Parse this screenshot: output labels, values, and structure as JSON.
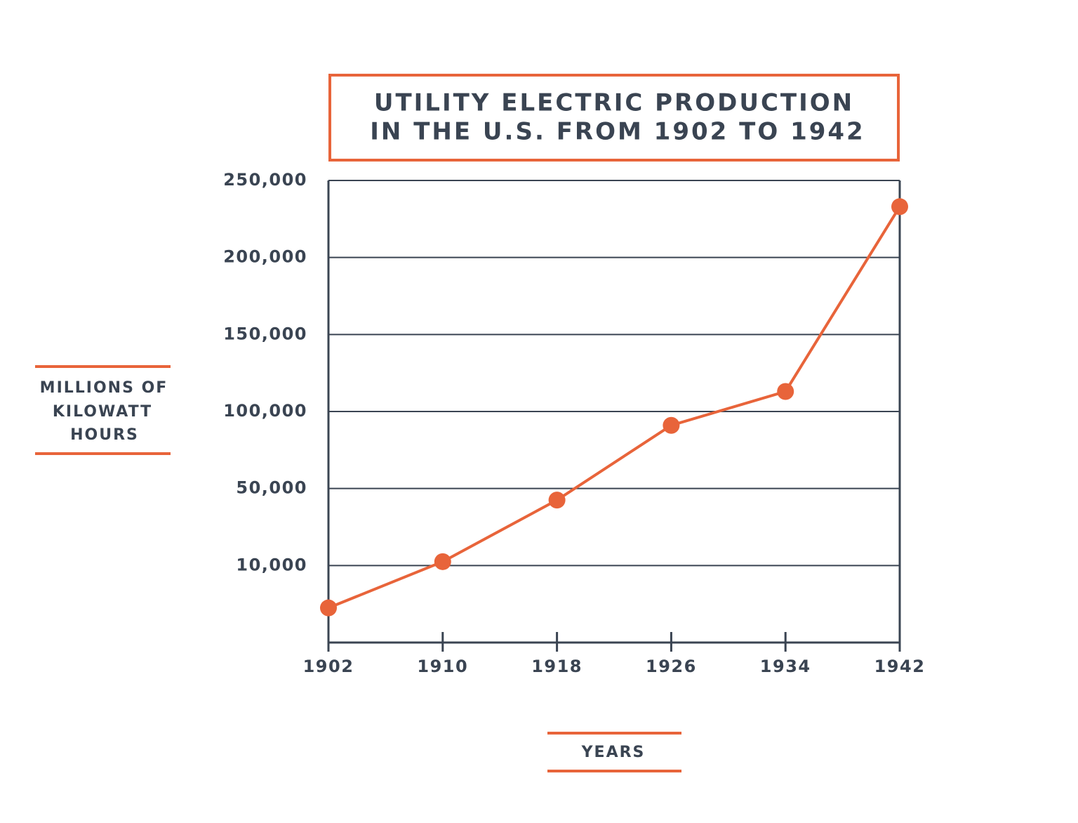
{
  "chart_data": {
    "type": "line",
    "title": [
      "UTILITY ELECTRIC PRODUCTION",
      "IN THE U.S. FROM 1902 TO 1942"
    ],
    "y_label": [
      "MILLIONS OF",
      "KILOWATT",
      "HOURS"
    ],
    "x_label": "YEARS",
    "x": [
      1902,
      1910,
      1918,
      1926,
      1934,
      1942
    ],
    "xlim": [
      1902,
      1942
    ],
    "xticks": [
      1902,
      1910,
      1918,
      1926,
      1934,
      1942
    ],
    "ylim": [
      0,
      250000
    ],
    "yticks": [
      {
        "value": 10000,
        "label": "10,000"
      },
      {
        "value": 50000,
        "label": "50,000"
      },
      {
        "value": 100000,
        "label": "100,000"
      },
      {
        "value": 150000,
        "label": "150,000"
      },
      {
        "value": 200000,
        "label": "200,000"
      },
      {
        "value": 250000,
        "label": "250,000"
      }
    ],
    "grid": true,
    "series": [
      {
        "color": "#e8643a",
        "values": [
          4500,
          12000,
          44000,
          91000,
          113000,
          233000
        ]
      }
    ]
  }
}
